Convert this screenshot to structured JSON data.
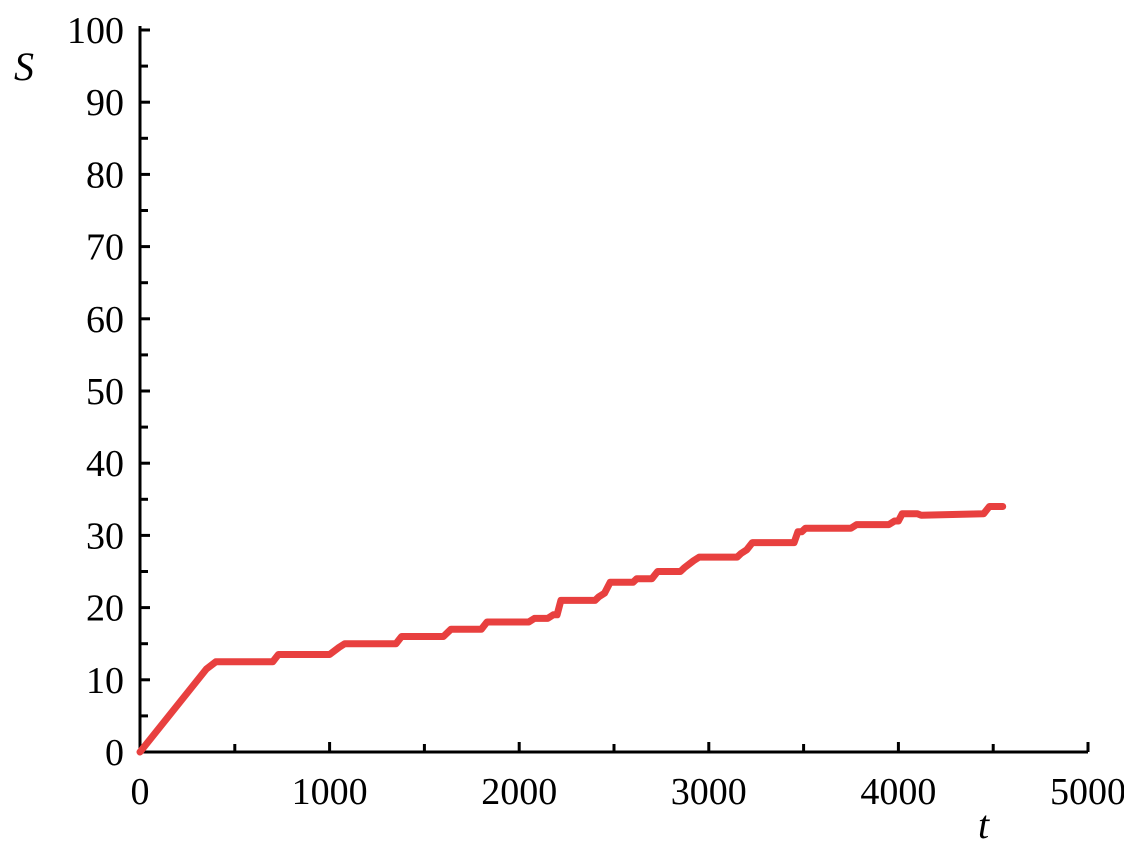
{
  "chart_data": {
    "type": "line",
    "title": "",
    "xlabel": "t",
    "ylabel": "S",
    "xlim": [
      0,
      5000
    ],
    "ylim": [
      0,
      100
    ],
    "x_ticks": [
      0,
      1000,
      2000,
      3000,
      4000,
      5000
    ],
    "y_ticks": [
      0,
      10,
      20,
      30,
      40,
      50,
      60,
      70,
      80,
      90,
      100
    ],
    "grid": false,
    "legend": "none",
    "series": [
      {
        "color": "#e8403f",
        "x": [
          0,
          350,
          400,
          700,
          730,
          1000,
          1050,
          1080,
          1350,
          1380,
          1600,
          1640,
          1800,
          1830,
          2050,
          2080,
          2150,
          2180,
          2200,
          2220,
          2400,
          2420,
          2450,
          2480,
          2600,
          2620,
          2700,
          2730,
          2850,
          2870,
          2920,
          2950,
          3150,
          3170,
          3200,
          3230,
          3300,
          3330,
          3450,
          3470,
          3490,
          3510,
          3750,
          3780,
          3950,
          3980,
          4000,
          4020,
          4100,
          4120,
          4450,
          4480,
          4550
        ],
        "values": [
          0,
          11.5,
          12.5,
          12.5,
          13.5,
          13.5,
          14.5,
          15,
          15,
          16,
          16,
          17,
          17,
          18,
          18,
          18.5,
          18.5,
          19,
          19,
          21,
          21,
          21.5,
          22,
          23.5,
          23.5,
          24,
          24,
          25,
          25,
          25.5,
          26.5,
          27,
          27,
          27.5,
          28,
          29,
          29,
          29,
          29,
          30.5,
          30.5,
          31,
          31,
          31.5,
          31.5,
          32,
          32,
          33,
          33,
          32.8,
          33,
          34,
          34
        ]
      }
    ]
  }
}
